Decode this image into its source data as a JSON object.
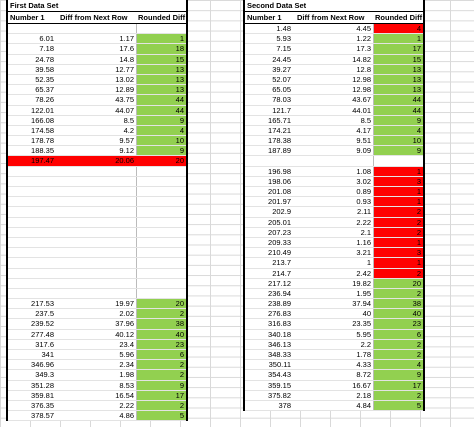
{
  "left": {
    "title": "First Data Set",
    "headers": [
      "Number 1",
      "Diff from Next Row",
      "Rounded Diff"
    ],
    "rows": [
      [
        "",
        "",
        ""
      ],
      [
        "6.01",
        "1.17",
        "1"
      ],
      [
        "7.18",
        "17.6",
        "18"
      ],
      [
        "24.78",
        "14.8",
        "15"
      ],
      [
        "39.58",
        "12.77",
        "13"
      ],
      [
        "52.35",
        "13.02",
        "13"
      ],
      [
        "65.37",
        "12.89",
        "13"
      ],
      [
        "78.26",
        "43.75",
        "44"
      ],
      [
        "122.01",
        "44.07",
        "44"
      ],
      [
        "166.08",
        "8.5",
        "9"
      ],
      [
        "174.58",
        "4.2",
        "4"
      ],
      [
        "178.78",
        "9.57",
        "10"
      ],
      [
        "188.35",
        "9.12",
        "9"
      ],
      [
        "197.47",
        "20.06",
        "20"
      ],
      [
        "",
        "",
        ""
      ],
      [
        "",
        "",
        ""
      ],
      [
        "",
        "",
        ""
      ],
      [
        "",
        "",
        ""
      ],
      [
        "",
        "",
        ""
      ],
      [
        "",
        "",
        ""
      ],
      [
        "",
        "",
        ""
      ],
      [
        "",
        "",
        ""
      ],
      [
        "",
        "",
        ""
      ],
      [
        "",
        "",
        ""
      ],
      [
        "",
        "",
        ""
      ],
      [
        "",
        "",
        ""
      ],
      [
        "",
        "",
        ""
      ],
      [
        "217.53",
        "19.97",
        "20"
      ],
      [
        "237.5",
        "2.02",
        "2"
      ],
      [
        "239.52",
        "37.96",
        "38"
      ],
      [
        "277.48",
        "40.12",
        "40"
      ],
      [
        "317.6",
        "23.4",
        "23"
      ],
      [
        "341",
        "5.96",
        "6"
      ],
      [
        "346.96",
        "2.34",
        "2"
      ],
      [
        "349.3",
        "1.98",
        "2"
      ],
      [
        "351.28",
        "8.53",
        "9"
      ],
      [
        "359.81",
        "16.54",
        "17"
      ],
      [
        "376.35",
        "2.22",
        "2"
      ],
      [
        "378.57",
        "4.86",
        "5"
      ]
    ],
    "fills": [
      "",
      "g",
      "g",
      "g",
      "g",
      "g",
      "g",
      "g",
      "g",
      "g",
      "g",
      "g",
      "g",
      "rowred",
      "",
      "",
      "",
      "",
      "",
      "",
      "",
      "",
      "",
      "",
      "",
      "",
      "",
      "g",
      "g",
      "g",
      "g",
      "g",
      "g",
      "g",
      "g",
      "g",
      "g",
      "g",
      "g"
    ]
  },
  "right": {
    "title": "Second Data Set",
    "headers": [
      "Number 1",
      "Diff from Next Row",
      "Rounded Diff"
    ],
    "rows": [
      [
        "1.48",
        "4.45",
        "4"
      ],
      [
        "5.93",
        "1.22",
        "1"
      ],
      [
        "7.15",
        "17.3",
        "17"
      ],
      [
        "24.45",
        "14.82",
        "15"
      ],
      [
        "39.27",
        "12.8",
        "13"
      ],
      [
        "52.07",
        "12.98",
        "13"
      ],
      [
        "65.05",
        "12.98",
        "13"
      ],
      [
        "78.03",
        "43.67",
        "44"
      ],
      [
        "121.7",
        "44.01",
        "44"
      ],
      [
        "165.71",
        "8.5",
        "9"
      ],
      [
        "174.21",
        "4.17",
        "4"
      ],
      [
        "178.38",
        "9.51",
        "10"
      ],
      [
        "187.89",
        "9.09",
        "9"
      ],
      [
        "",
        "",
        ""
      ],
      [
        "196.98",
        "1.08",
        "1"
      ],
      [
        "198.06",
        "3.02",
        "3"
      ],
      [
        "201.08",
        "0.89",
        "1"
      ],
      [
        "201.97",
        "0.93",
        "1"
      ],
      [
        "202.9",
        "2.11",
        "2"
      ],
      [
        "205.01",
        "2.22",
        "2"
      ],
      [
        "207.23",
        "2.1",
        "2"
      ],
      [
        "209.33",
        "1.16",
        "1"
      ],
      [
        "210.49",
        "3.21",
        "3"
      ],
      [
        "213.7",
        "1",
        "1"
      ],
      [
        "214.7",
        "2.42",
        "2"
      ],
      [
        "217.12",
        "19.82",
        "20"
      ],
      [
        "236.94",
        "1.95",
        "2"
      ],
      [
        "238.89",
        "37.94",
        "38"
      ],
      [
        "276.83",
        "40",
        "40"
      ],
      [
        "316.83",
        "23.35",
        "23"
      ],
      [
        "340.18",
        "5.95",
        "6"
      ],
      [
        "346.13",
        "2.2",
        "2"
      ],
      [
        "348.33",
        "1.78",
        "2"
      ],
      [
        "350.11",
        "4.33",
        "4"
      ],
      [
        "354.43",
        "8.72",
        "9"
      ],
      [
        "359.15",
        "16.67",
        "17"
      ],
      [
        "375.82",
        "2.18",
        "2"
      ],
      [
        "378",
        "4.84",
        "5"
      ]
    ],
    "fills": [
      "r",
      "g",
      "g",
      "g",
      "g",
      "g",
      "g",
      "g",
      "g",
      "g",
      "g",
      "g",
      "g",
      "",
      "r",
      "r",
      "r",
      "r",
      "r",
      "r",
      "r",
      "r",
      "r",
      "r",
      "r",
      "g",
      "g",
      "g",
      "g",
      "g",
      "g",
      "g",
      "g",
      "g",
      "g",
      "g",
      "g",
      "g"
    ]
  }
}
